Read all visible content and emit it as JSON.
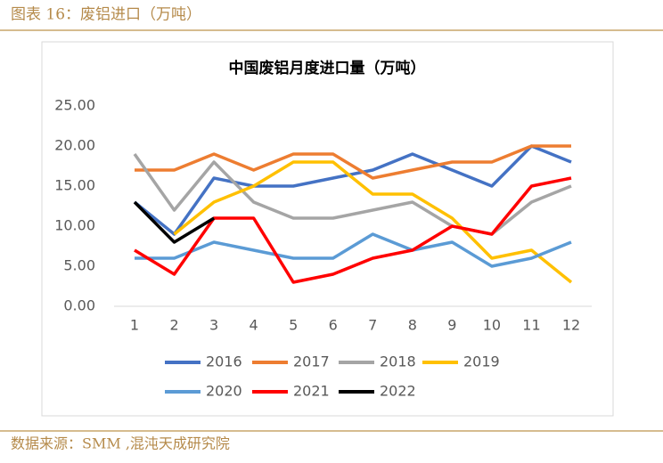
{
  "header": {
    "title": "图表 16：废铝进口（万吨）"
  },
  "footer": {
    "source": "数据来源：SMM ,混沌天成研究院"
  },
  "chart_data": {
    "type": "line",
    "title": "中国废铝月度进口量（万吨）",
    "categories": [
      "1",
      "2",
      "3",
      "4",
      "5",
      "6",
      "7",
      "8",
      "9",
      "10",
      "11",
      "12"
    ],
    "series": [
      {
        "name": "2016",
        "color": "#4472c4",
        "values": [
          13,
          9,
          16,
          15,
          15,
          16,
          17,
          19,
          17,
          15,
          20,
          18
        ]
      },
      {
        "name": "2017",
        "color": "#ed7d31",
        "values": [
          17,
          17,
          19,
          17,
          19,
          19,
          16,
          17,
          18,
          18,
          20,
          20
        ]
      },
      {
        "name": "2018",
        "color": "#a5a5a5",
        "values": [
          19,
          12,
          18,
          13,
          11,
          11,
          12,
          13,
          10,
          9,
          13,
          15
        ]
      },
      {
        "name": "2019",
        "color": "#ffc000",
        "values": [
          null,
          9,
          13,
          15,
          18,
          18,
          14,
          14,
          11,
          6,
          7,
          3
        ]
      },
      {
        "name": "2020",
        "color": "#5b9bd5",
        "values": [
          6,
          6,
          8,
          7,
          6,
          6,
          9,
          7,
          8,
          5,
          6,
          8
        ]
      },
      {
        "name": "2021",
        "color": "#ff0000",
        "values": [
          7,
          4,
          11,
          11,
          3,
          4,
          6,
          7,
          10,
          9,
          15,
          16
        ]
      },
      {
        "name": "2022",
        "color": "#000000",
        "values": [
          13,
          8,
          11,
          null,
          null,
          null,
          null,
          null,
          null,
          null,
          null,
          null
        ]
      }
    ],
    "ylim": [
      0,
      25
    ],
    "yticks": [
      {
        "value": 0,
        "label": "0.00"
      },
      {
        "value": 5,
        "label": "5.00"
      },
      {
        "value": 10,
        "label": "10.00"
      },
      {
        "value": 15,
        "label": "15.00"
      },
      {
        "value": 20,
        "label": "20.00"
      },
      {
        "value": 25,
        "label": "25.00"
      }
    ],
    "grid": false,
    "legend": "bottom"
  }
}
